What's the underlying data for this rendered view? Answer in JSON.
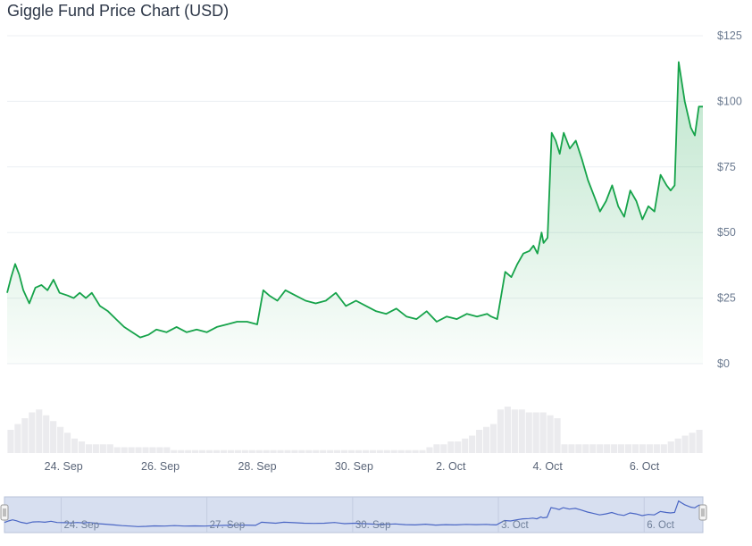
{
  "title": "Giggle Fund Price Chart (USD)",
  "colors": {
    "line": "#16a34a",
    "area_top": "#16a34a",
    "grid": "#eceff3",
    "volume": "#ebebee",
    "navigator_fill": "#d7dff0",
    "navigator_line": "#4a66c4"
  },
  "chart_data": {
    "type": "area",
    "title": "Giggle Fund Price Chart (USD)",
    "xlabel": "",
    "ylabel": "",
    "ylim": [
      0,
      125
    ],
    "y_ticks": [
      "$0",
      "$25",
      "$50",
      "$75",
      "$100",
      "$125"
    ],
    "y_tick_values": [
      0,
      25,
      50,
      75,
      100,
      125
    ],
    "x_range": [
      "2024-09-22T20:00",
      "2024-10-07T05:00"
    ],
    "x_ticks": [
      "24. Sep",
      "26. Sep",
      "28. Sep",
      "30. Sep",
      "2. Oct",
      "4. Oct",
      "6. Oct"
    ],
    "x_tick_dates": [
      "2024-09-24",
      "2024-09-26",
      "2024-09-28",
      "2024-09-30",
      "2024-10-02",
      "2024-10-04",
      "2024-10-06"
    ],
    "grid": true,
    "legend": "none",
    "series": [
      {
        "x": [
          "2024-09-22T20:00",
          "2024-09-22T22:00",
          "2024-09-23T00:00",
          "2024-09-23T02:00",
          "2024-09-23T04:00",
          "2024-09-23T07:00",
          "2024-09-23T10:00",
          "2024-09-23T13:00",
          "2024-09-23T16:00",
          "2024-09-23T19:00",
          "2024-09-23T22:00",
          "2024-09-24T02:00",
          "2024-09-24T05:00",
          "2024-09-24T08:00",
          "2024-09-24T11:00",
          "2024-09-24T14:00",
          "2024-09-24T18:00",
          "2024-09-24T22:00",
          "2024-09-25T02:00",
          "2024-09-25T06:00",
          "2024-09-25T10:00",
          "2024-09-25T14:00",
          "2024-09-25T18:00",
          "2024-09-25T22:00",
          "2024-09-26T03:00",
          "2024-09-26T08:00",
          "2024-09-26T13:00",
          "2024-09-26T18:00",
          "2024-09-26T23:00",
          "2024-09-27T04:00",
          "2024-09-27T09:00",
          "2024-09-27T14:00",
          "2024-09-27T19:00",
          "2024-09-28T00:00",
          "2024-09-28T03:00",
          "2024-09-28T06:00",
          "2024-09-28T10:00",
          "2024-09-28T14:00",
          "2024-09-28T19:00",
          "2024-09-29T00:00",
          "2024-09-29T05:00",
          "2024-09-29T10:00",
          "2024-09-29T15:00",
          "2024-09-29T20:00",
          "2024-09-30T01:00",
          "2024-09-30T06:00",
          "2024-09-30T11:00",
          "2024-09-30T16:00",
          "2024-09-30T21:00",
          "2024-10-01T02:00",
          "2024-10-01T07:00",
          "2024-10-01T12:00",
          "2024-10-01T17:00",
          "2024-10-01T22:00",
          "2024-10-02T03:00",
          "2024-10-02T08:00",
          "2024-10-02T13:00",
          "2024-10-02T18:00",
          "2024-10-02T20:00",
          "2024-10-02T23:00",
          "2024-10-03T03:00",
          "2024-10-03T06:00",
          "2024-10-03T09:00",
          "2024-10-03T12:00",
          "2024-10-03T15:00",
          "2024-10-03T17:00",
          "2024-10-03T19:00",
          "2024-10-03T21:00",
          "2024-10-03T22:00",
          "2024-10-04T00:00",
          "2024-10-04T02:00",
          "2024-10-04T04:00",
          "2024-10-04T06:00",
          "2024-10-04T08:00",
          "2024-10-04T11:00",
          "2024-10-04T14:00",
          "2024-10-04T17:00",
          "2024-10-04T20:00",
          "2024-10-04T23:00",
          "2024-10-05T02:00",
          "2024-10-05T05:00",
          "2024-10-05T08:00",
          "2024-10-05T11:00",
          "2024-10-05T14:00",
          "2024-10-05T17:00",
          "2024-10-05T20:00",
          "2024-10-05T23:00",
          "2024-10-06T02:00",
          "2024-10-06T05:00",
          "2024-10-06T08:00",
          "2024-10-06T11:00",
          "2024-10-06T13:00",
          "2024-10-06T15:00",
          "2024-10-06T17:00",
          "2024-10-06T20:00",
          "2024-10-06T23:00",
          "2024-10-07T01:00",
          "2024-10-07T03:00",
          "2024-10-07T05:00"
        ],
        "y": [
          27,
          33,
          38,
          34,
          28,
          23,
          29,
          30,
          28,
          32,
          27,
          26,
          25,
          27,
          25,
          27,
          22,
          20,
          17,
          14,
          12,
          10,
          11,
          13,
          12,
          14,
          12,
          13,
          12,
          14,
          15,
          16,
          16,
          15,
          28,
          26,
          24,
          28,
          26,
          24,
          23,
          24,
          27,
          22,
          24,
          22,
          20,
          19,
          21,
          18,
          17,
          20,
          16,
          18,
          17,
          19,
          18,
          19,
          18,
          17,
          35,
          33,
          38,
          42,
          43,
          45,
          42,
          50,
          46,
          48,
          88,
          85,
          80,
          88,
          82,
          85,
          78,
          70,
          64,
          58,
          62,
          68,
          60,
          56,
          66,
          62,
          55,
          60,
          58,
          72,
          68,
          66,
          68,
          115,
          100,
          90,
          87,
          98,
          98
        ]
      }
    ],
    "volume": {
      "type": "bar",
      "values": [
        8,
        10,
        12,
        14,
        15,
        13,
        11,
        9,
        7,
        5,
        4,
        3,
        3,
        3,
        3,
        2,
        2,
        2,
        2,
        2,
        2,
        2,
        2,
        1,
        1,
        1,
        1,
        1,
        1,
        1,
        1,
        1,
        1,
        1,
        1,
        1,
        1,
        1,
        1,
        1,
        1,
        1,
        1,
        1,
        1,
        1,
        1,
        1,
        1,
        1,
        1,
        1,
        1,
        1,
        1,
        1,
        1,
        1,
        1,
        2,
        3,
        3,
        4,
        4,
        5,
        6,
        8,
        9,
        10,
        15,
        16,
        15,
        15,
        14,
        14,
        14,
        13,
        12,
        3,
        3,
        3,
        3,
        3,
        3,
        3,
        3,
        3,
        3,
        3,
        3,
        3,
        3,
        3,
        4,
        5,
        6,
        7,
        8
      ]
    },
    "navigator": {
      "x_ticks": [
        "24. Sep",
        "27. Sep",
        "30. Sep",
        "3. Oct",
        "6. Oct"
      ],
      "x_tick_dates": [
        "2024-09-24",
        "2024-09-27",
        "2024-09-30",
        "2024-10-03",
        "2024-10-06"
      ]
    }
  }
}
